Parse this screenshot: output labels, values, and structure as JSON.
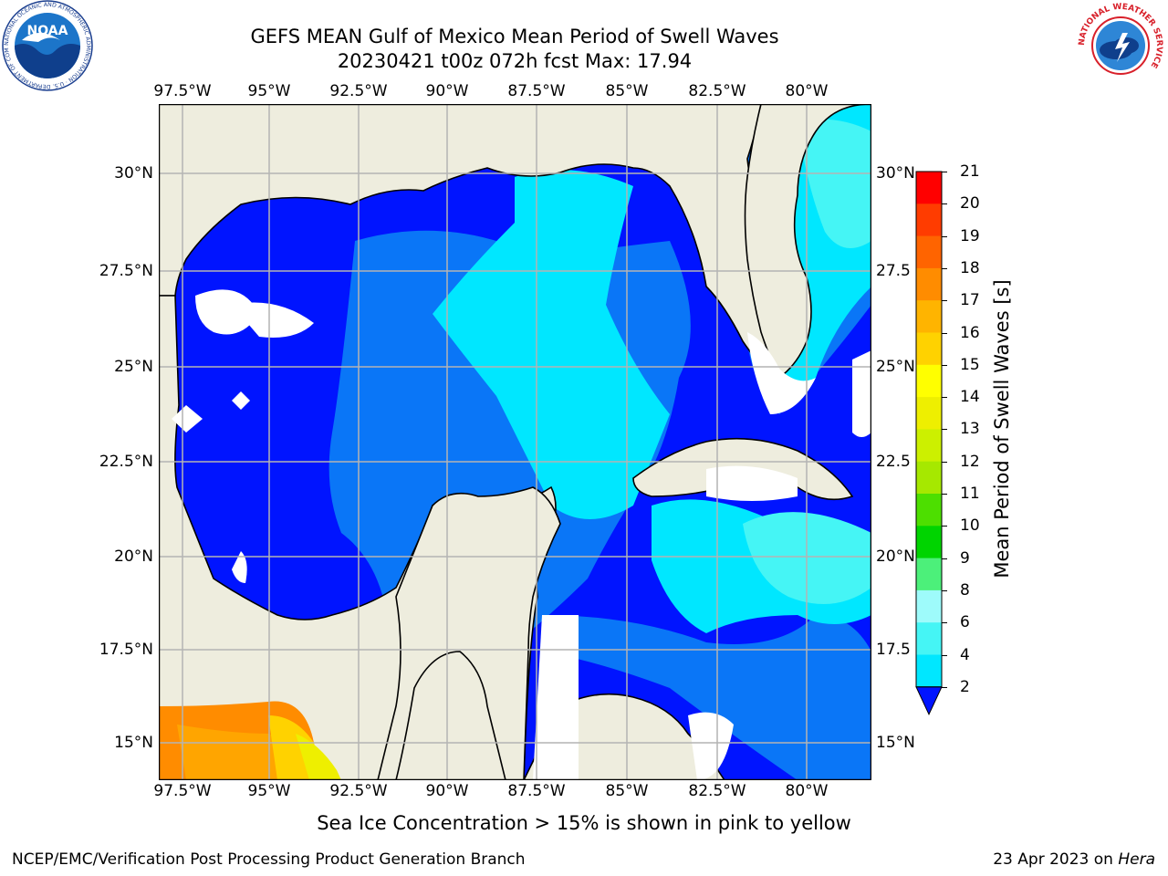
{
  "title": {
    "line1": "GEFS MEAN Gulf of Mexico Mean Period of Swell Waves",
    "line2": "20230421 t00z 072h fcst   Max: 17.94"
  },
  "map": {
    "lon_ticks": [
      "97.5°W",
      "95°W",
      "92.5°W",
      "90°W",
      "87.5°W",
      "85°W",
      "82.5°W",
      "80°W"
    ],
    "lat_ticks_left": [
      "30°N",
      "27.5°N",
      "25°N",
      "22.5°N",
      "20°N",
      "17.5°N",
      "15°N"
    ],
    "lat_ticks_right": [
      "30°N",
      "27.5",
      "25°N",
      "22.5",
      "20°N",
      "17.5",
      "15°N"
    ],
    "land_color": "#eeedde",
    "no_data_color": "#ffffff"
  },
  "colorbar": {
    "label": "Mean Period of Swell Waves [s]",
    "ticks": [
      "2",
      "4",
      "6",
      "8",
      "9",
      "10",
      "11",
      "12",
      "13",
      "14",
      "15",
      "16",
      "17",
      "18",
      "19",
      "20",
      "21"
    ],
    "colors": [
      "#0a76f7",
      "#00e7ff",
      "#45f5f5",
      "#9efbfb",
      "#4cf07a",
      "#00d400",
      "#4ddf00",
      "#a6e800",
      "#ccf000",
      "#eeef00",
      "#ffff00",
      "#ffd200",
      "#ffb400",
      "#ff8c00",
      "#ff6400",
      "#ff3c00",
      "#ff0000"
    ],
    "extend_color": "#0014ff"
  },
  "note": "Sea Ice Concentration > 15% is shown in pink to yellow",
  "footer": {
    "left": "NCEP/EMC/Verification Post Processing Product Generation Branch",
    "right_prefix": "23 Apr 2023 on ",
    "right_host": "Hera"
  },
  "logos": {
    "noaa_text": "NOAA",
    "noaa_ring": "NATIONAL OCEANIC AND ATMOSPHERIC ADMINISTRATION · U.S. DEPARTMENT OF COMMERCE",
    "nws_ring": "NATIONAL WEATHER SERVICE"
  }
}
